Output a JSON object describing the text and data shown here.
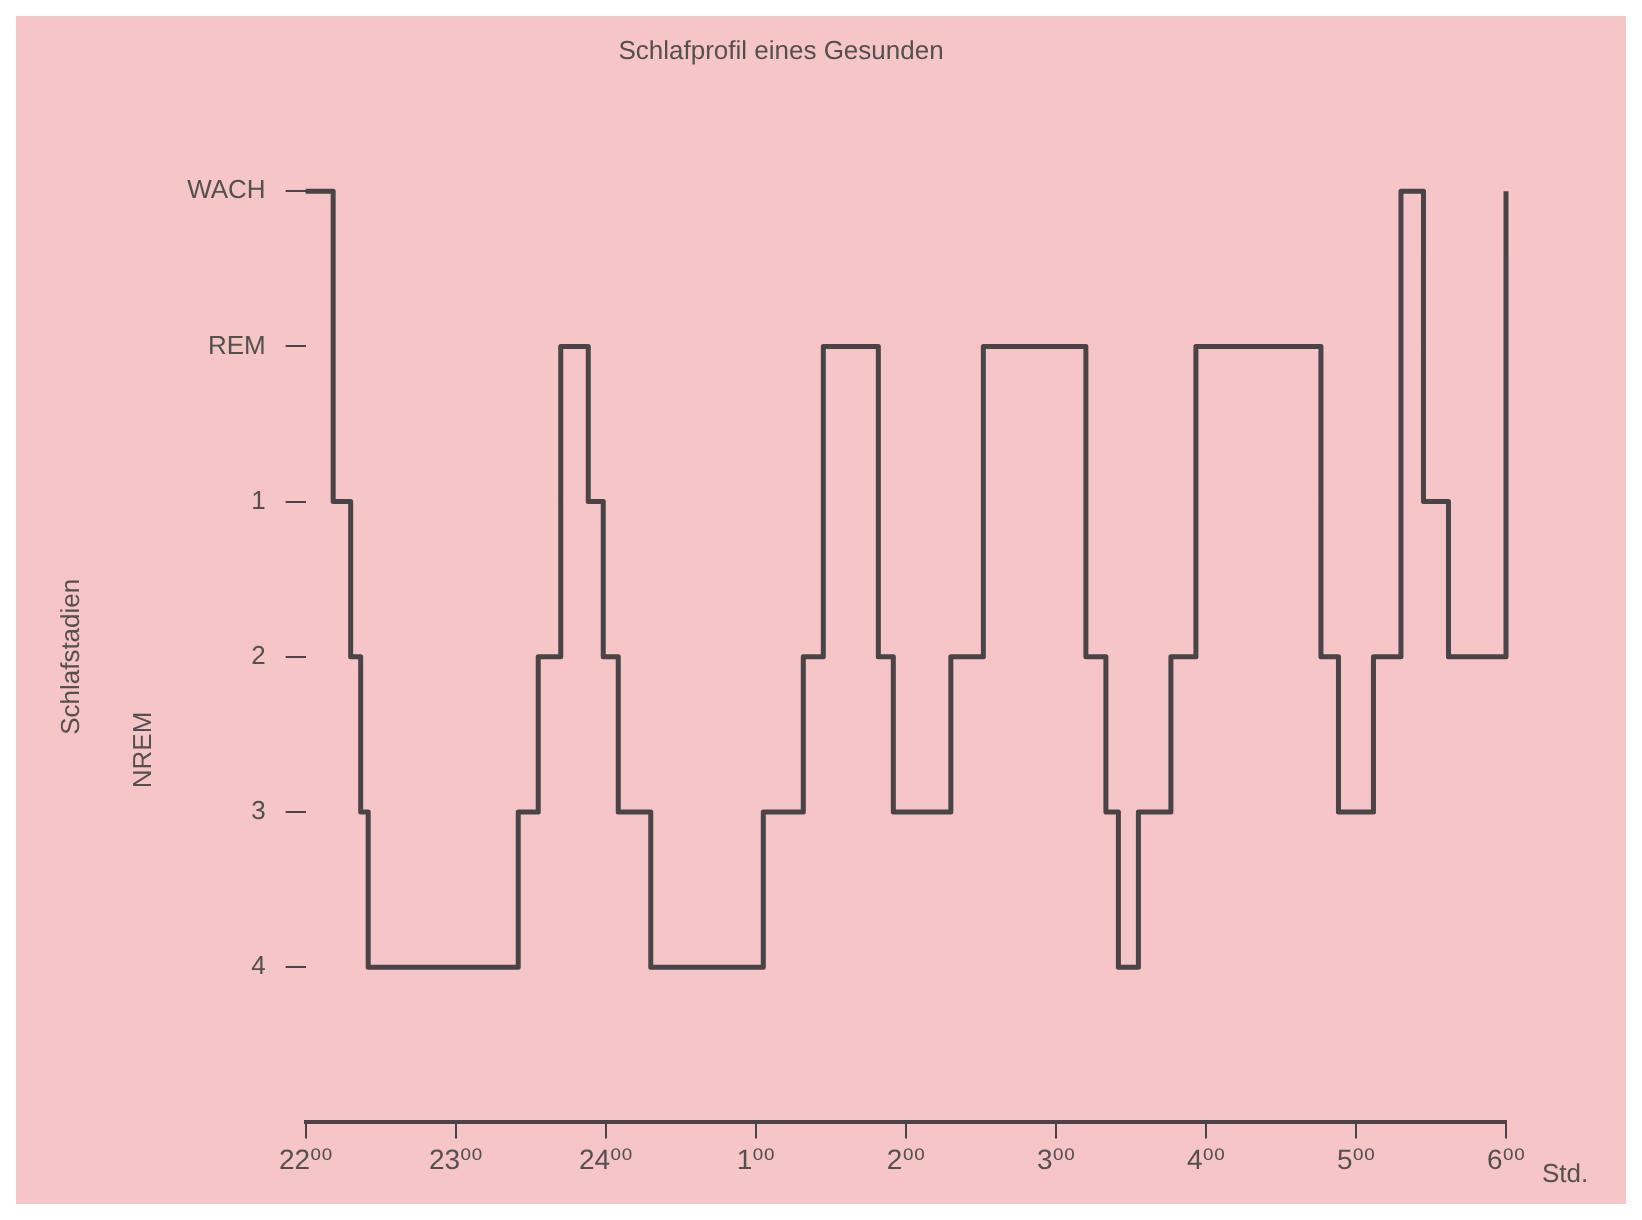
{
  "chart_data": {
    "type": "step",
    "title": "Schlafprofil eines Gesunden",
    "xlabel": "Std.",
    "ylabel": "Schlafstadien",
    "annotations": [
      "NREM"
    ],
    "x": [
      "--01-01T22:00",
      "--01-01T22:11",
      "--01-01T22:18",
      "--01-01T22:22",
      "--01-01T22:25",
      "--01-01T23:25",
      "--01-01T23:33",
      "--01-01T23:42",
      "--01-01T23:53",
      "--01-01T23:59",
      "--01-02T00:05",
      "--01-02T00:18",
      "--01-02T01:03",
      "--01-02T01:19",
      "--01-02T01:27",
      "--01-02T01:49",
      "--01-02T01:55",
      "--01-02T02:18",
      "--01-02T02:31",
      "--01-02T03:12",
      "--01-02T03:20",
      "--01-02T03:25",
      "--01-02T03:33",
      "--01-02T03:46",
      "--01-02T03:56",
      "--01-02T04:46",
      "--01-02T04:53",
      "--01-02T05:07",
      "--01-02T05:18",
      "--01-02T05:27",
      "--01-02T05:37",
      "--01-02T06:00"
    ],
    "values": [
      -1,
      1,
      2,
      3,
      4,
      3,
      2,
      0,
      1,
      2,
      3,
      4,
      3,
      2,
      0,
      2,
      3,
      2,
      0,
      2,
      3,
      4,
      3,
      2,
      0,
      2,
      3,
      2,
      -1,
      1,
      2,
      -1
    ],
    "color": "#4a4446",
    "xlim": [
      "--01-01T22:00",
      "--01-02T06:00"
    ],
    "xticks": [
      {
        "value": "--01-01T22:00",
        "label": "22⁰⁰"
      },
      {
        "value": "--01-01T23:00",
        "label": "23⁰⁰"
      },
      {
        "value": "--01-02T00:00",
        "label": "24⁰⁰"
      },
      {
        "value": "--01-02T01:00",
        "label": "1⁰⁰"
      },
      {
        "value": "--01-02T02:00",
        "label": "2⁰⁰"
      },
      {
        "value": "--01-02T03:00",
        "label": "3⁰⁰"
      },
      {
        "value": "--01-02T04:00",
        "label": "4⁰⁰"
      },
      {
        "value": "--01-02T05:00",
        "label": "5⁰⁰"
      },
      {
        "value": "--01-02T06:00",
        "label": "6⁰⁰"
      }
    ],
    "ylim": [
      5,
      -1
    ],
    "yticks": [
      {
        "value": -1,
        "label": "WACH"
      },
      {
        "value": 0,
        "label": "REM"
      },
      1,
      2,
      3,
      4
    ],
    "grid": false,
    "legend": false,
    "marker": "none",
    "line_style": "solid"
  }
}
